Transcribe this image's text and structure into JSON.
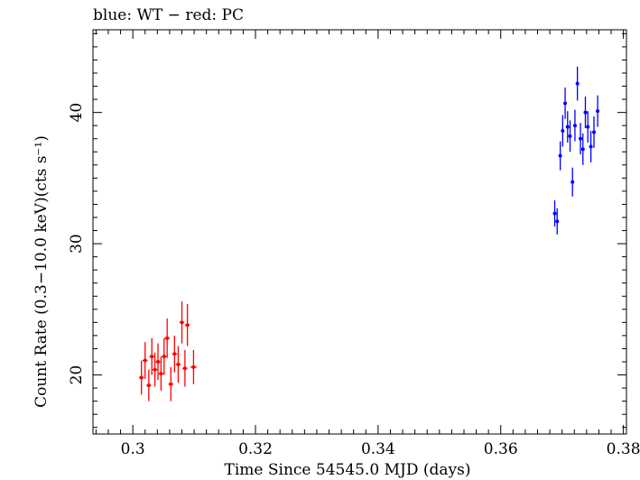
{
  "chart_data": {
    "type": "scatter",
    "title": "blue: WT − red: PC",
    "xlabel": "Time Since 54545.0 MJD (days)",
    "ylabel": "Count Rate (0.3−10.0 keV)(cts s⁻¹)",
    "xlim": [
      0.2935,
      0.3805
    ],
    "ylim": [
      15.5,
      46.3
    ],
    "x_ticks": [
      0.3,
      0.32,
      0.34,
      0.36,
      0.38
    ],
    "x_tick_labels": [
      "0.3",
      "0.32",
      "0.34",
      "0.36",
      "0.38"
    ],
    "y_ticks": [
      20,
      30,
      40
    ],
    "y_tick_labels": [
      "20",
      "30",
      "40"
    ],
    "grid": false,
    "series": [
      {
        "color": "#ff0000",
        "points": [
          {
            "x": 0.3014,
            "y": 19.8,
            "xerr": 0.0004,
            "yerr": 1.3
          },
          {
            "x": 0.302,
            "y": 21.1,
            "xerr": 0.0004,
            "yerr": 1.4
          },
          {
            "x": 0.3026,
            "y": 19.2,
            "xerr": 0.0004,
            "yerr": 1.2
          },
          {
            "x": 0.3031,
            "y": 21.4,
            "xerr": 0.0004,
            "yerr": 1.4
          },
          {
            "x": 0.3036,
            "y": 20.4,
            "xerr": 0.0004,
            "yerr": 1.3
          },
          {
            "x": 0.3041,
            "y": 21.0,
            "xerr": 0.0004,
            "yerr": 1.4
          },
          {
            "x": 0.3046,
            "y": 20.1,
            "xerr": 0.0004,
            "yerr": 1.3
          },
          {
            "x": 0.3051,
            "y": 21.4,
            "xerr": 0.0004,
            "yerr": 1.4
          },
          {
            "x": 0.3056,
            "y": 22.8,
            "xerr": 0.0004,
            "yerr": 1.5
          },
          {
            "x": 0.3062,
            "y": 19.3,
            "xerr": 0.0004,
            "yerr": 1.3
          },
          {
            "x": 0.3068,
            "y": 21.6,
            "xerr": 0.0004,
            "yerr": 1.4
          },
          {
            "x": 0.3074,
            "y": 20.8,
            "xerr": 0.0004,
            "yerr": 1.4
          },
          {
            "x": 0.308,
            "y": 24.0,
            "xerr": 0.0004,
            "yerr": 1.6
          },
          {
            "x": 0.3085,
            "y": 20.5,
            "xerr": 0.0004,
            "yerr": 1.4
          },
          {
            "x": 0.3089,
            "y": 23.8,
            "xerr": 0.0004,
            "yerr": 1.6
          },
          {
            "x": 0.3099,
            "y": 20.6,
            "xerr": 0.0005,
            "yerr": 1.3
          }
        ]
      },
      {
        "color": "#0000ff",
        "points": [
          {
            "x": 0.3688,
            "y": 32.3,
            "xerr": 0.0002,
            "yerr": 1.0
          },
          {
            "x": 0.3692,
            "y": 31.7,
            "xerr": 0.0002,
            "yerr": 1.0
          },
          {
            "x": 0.3697,
            "y": 36.7,
            "xerr": 0.0002,
            "yerr": 1.1
          },
          {
            "x": 0.3701,
            "y": 38.6,
            "xerr": 0.0002,
            "yerr": 1.2
          },
          {
            "x": 0.3705,
            "y": 40.7,
            "xerr": 0.0002,
            "yerr": 1.2
          },
          {
            "x": 0.3709,
            "y": 38.9,
            "xerr": 0.0002,
            "yerr": 1.2
          },
          {
            "x": 0.3713,
            "y": 38.2,
            "xerr": 0.0002,
            "yerr": 1.2
          },
          {
            "x": 0.3717,
            "y": 34.7,
            "xerr": 0.0002,
            "yerr": 1.1
          },
          {
            "x": 0.3721,
            "y": 39.0,
            "xerr": 0.0002,
            "yerr": 1.2
          },
          {
            "x": 0.3725,
            "y": 42.2,
            "xerr": 0.0002,
            "yerr": 1.3
          },
          {
            "x": 0.373,
            "y": 38.0,
            "xerr": 0.0002,
            "yerr": 1.2
          },
          {
            "x": 0.3734,
            "y": 37.2,
            "xerr": 0.0002,
            "yerr": 1.2
          },
          {
            "x": 0.3738,
            "y": 40.0,
            "xerr": 0.0002,
            "yerr": 1.2
          },
          {
            "x": 0.3742,
            "y": 38.9,
            "xerr": 0.0002,
            "yerr": 1.2
          },
          {
            "x": 0.3747,
            "y": 37.4,
            "xerr": 0.0002,
            "yerr": 1.2
          },
          {
            "x": 0.3752,
            "y": 38.5,
            "xerr": 0.0002,
            "yerr": 1.2
          },
          {
            "x": 0.3758,
            "y": 40.1,
            "xerr": 0.0002,
            "yerr": 1.2
          }
        ]
      }
    ]
  }
}
